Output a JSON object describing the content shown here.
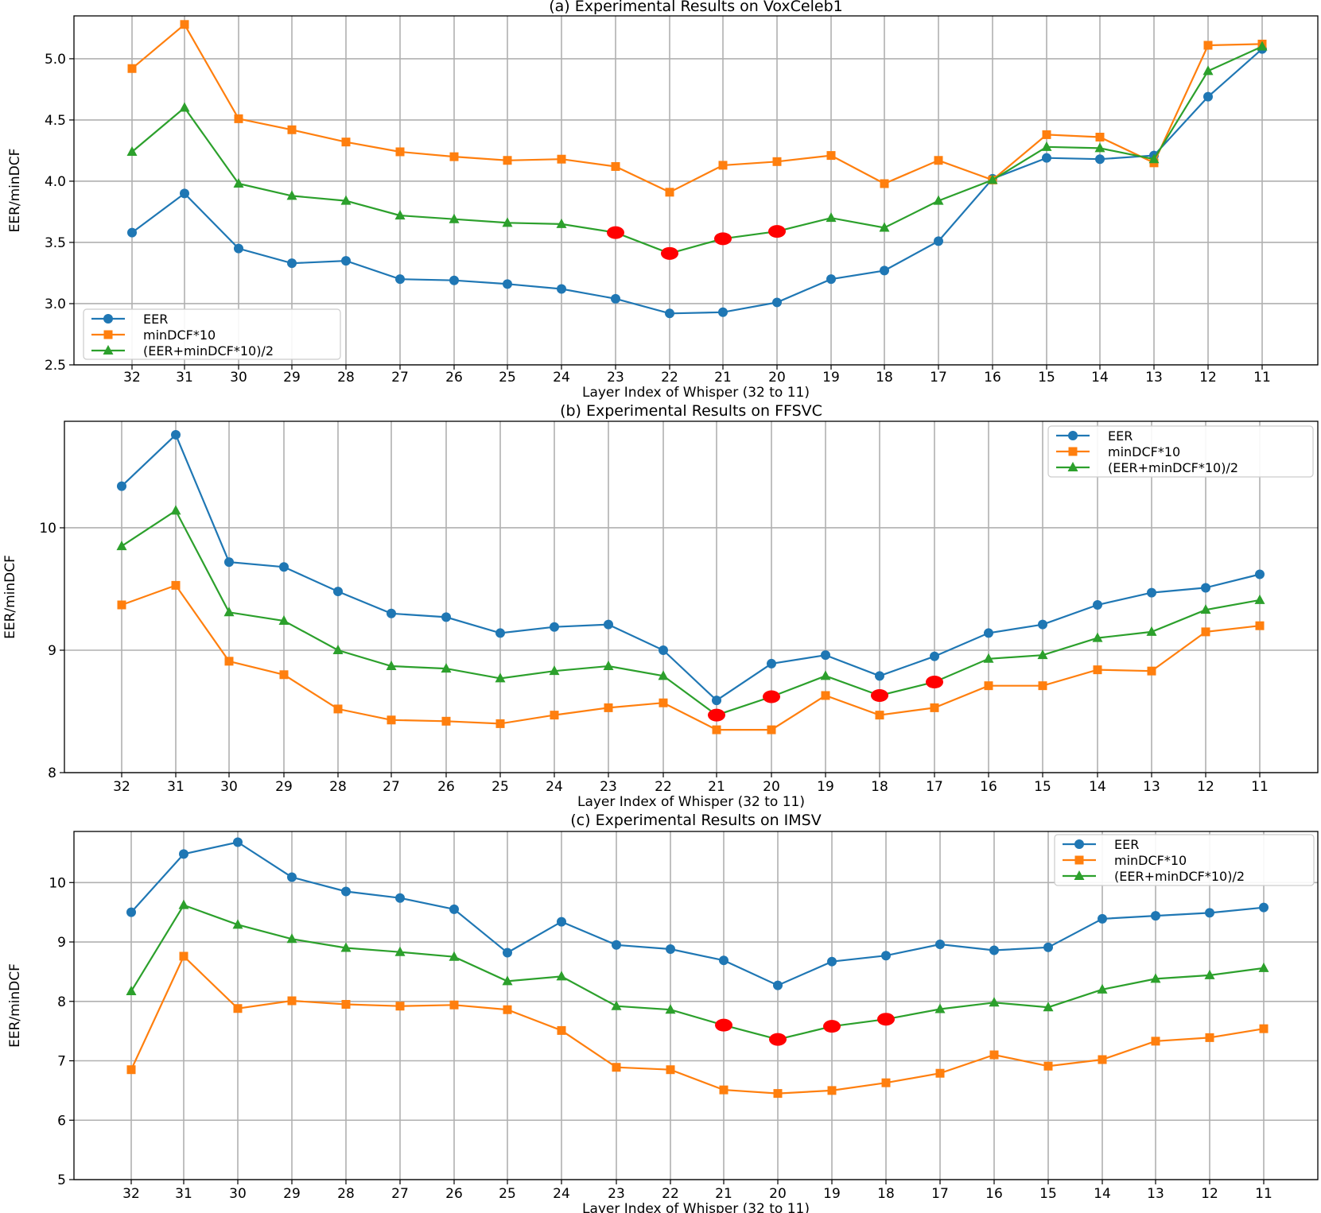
{
  "colors": {
    "eer": "#1f77b4",
    "mindcf": "#ff7f0e",
    "avg": "#2ca02c",
    "highlight": "#ff0000",
    "grid": "#b0b0b0"
  },
  "chart_data": [
    {
      "type": "line",
      "title": "(a) Experimental Results on VoxCeleb1",
      "xlabel": "Layer Index of Whisper (32 to 11)",
      "ylabel": "EER/minDCF",
      "categories": [
        "32",
        "31",
        "30",
        "29",
        "28",
        "27",
        "26",
        "25",
        "24",
        "23",
        "22",
        "21",
        "20",
        "19",
        "18",
        "17",
        "16",
        "15",
        "14",
        "13",
        "12",
        "11"
      ],
      "ylim": [
        2.5,
        5.35
      ],
      "yticks": [
        "2.5",
        "3.0",
        "3.5",
        "4.0",
        "4.5",
        "5.0"
      ],
      "legend_position": "lower-left",
      "series": [
        {
          "name": "EER",
          "marker": "circle",
          "values": [
            3.58,
            3.9,
            3.45,
            3.33,
            3.35,
            3.2,
            3.19,
            3.16,
            3.12,
            3.04,
            2.92,
            2.93,
            3.01,
            3.2,
            3.27,
            3.51,
            4.02,
            4.19,
            4.18,
            4.21,
            4.69,
            5.08
          ]
        },
        {
          "name": "minDCF*10",
          "marker": "square",
          "values": [
            4.92,
            5.28,
            4.51,
            4.42,
            4.32,
            4.24,
            4.2,
            4.17,
            4.18,
            4.12,
            3.91,
            4.13,
            4.16,
            4.21,
            3.98,
            4.17,
            4.01,
            4.38,
            4.36,
            4.15,
            5.11,
            5.12
          ]
        },
        {
          "name": "(EER+minDCF*10)/2",
          "marker": "triangle",
          "values": [
            4.24,
            4.6,
            3.98,
            3.88,
            3.84,
            3.72,
            3.69,
            3.66,
            3.65,
            3.58,
            3.41,
            3.53,
            3.59,
            3.7,
            3.62,
            3.84,
            4.01,
            4.28,
            4.27,
            4.18,
            4.9,
            5.1
          ]
        }
      ],
      "highlights": [
        {
          "layer": "23",
          "value": 3.58
        },
        {
          "layer": "22",
          "value": 3.41
        },
        {
          "layer": "21",
          "value": 3.53
        },
        {
          "layer": "20",
          "value": 3.59
        }
      ]
    },
    {
      "type": "line",
      "title": "(b) Experimental Results on FFSVC",
      "xlabel": "Layer Index of Whisper (32 to 11)",
      "ylabel": "EER/minDCF",
      "categories": [
        "32",
        "31",
        "30",
        "29",
        "28",
        "27",
        "26",
        "25",
        "24",
        "23",
        "22",
        "21",
        "20",
        "19",
        "18",
        "17",
        "16",
        "15",
        "14",
        "13",
        "12",
        "11"
      ],
      "ylim": [
        8,
        10.87
      ],
      "yticks": [
        "8",
        "9",
        "10"
      ],
      "legend_position": "upper-right",
      "series": [
        {
          "name": "EER",
          "marker": "circle",
          "values": [
            10.34,
            10.76,
            9.72,
            9.68,
            9.48,
            9.3,
            9.27,
            9.14,
            9.19,
            9.21,
            9.0,
            8.59,
            8.89,
            8.96,
            8.79,
            8.95,
            9.14,
            9.21,
            9.37,
            9.47,
            9.51,
            9.62
          ]
        },
        {
          "name": "minDCF*10",
          "marker": "square",
          "values": [
            9.37,
            9.53,
            8.91,
            8.8,
            8.52,
            8.43,
            8.42,
            8.4,
            8.47,
            8.53,
            8.57,
            8.35,
            8.35,
            8.63,
            8.47,
            8.53,
            8.71,
            8.71,
            8.84,
            8.83,
            9.15,
            9.2
          ]
        },
        {
          "name": "(EER+minDCF*10)/2",
          "marker": "triangle",
          "values": [
            9.85,
            10.14,
            9.31,
            9.24,
            9.0,
            8.87,
            8.85,
            8.77,
            8.83,
            8.87,
            8.79,
            8.47,
            8.62,
            8.79,
            8.63,
            8.74,
            8.93,
            8.96,
            9.1,
            9.15,
            9.33,
            9.41
          ]
        }
      ],
      "highlights": [
        {
          "layer": "21",
          "value": 8.47
        },
        {
          "layer": "20",
          "value": 8.62
        },
        {
          "layer": "18",
          "value": 8.63
        },
        {
          "layer": "17",
          "value": 8.74
        }
      ]
    },
    {
      "type": "line",
      "title": "(c) Experimental Results on IMSV",
      "xlabel": "Layer Index of Whisper (32 to 11)",
      "ylabel": "EER/minDCF",
      "categories": [
        "32",
        "31",
        "30",
        "29",
        "28",
        "27",
        "26",
        "25",
        "24",
        "23",
        "22",
        "21",
        "20",
        "19",
        "18",
        "17",
        "16",
        "15",
        "14",
        "13",
        "12",
        "11"
      ],
      "ylim": [
        5,
        10.86
      ],
      "yticks": [
        "5",
        "6",
        "7",
        "8",
        "9",
        "10"
      ],
      "legend_position": "upper-right",
      "series": [
        {
          "name": "EER",
          "marker": "circle",
          "values": [
            9.5,
            10.48,
            10.68,
            10.09,
            9.85,
            9.74,
            9.55,
            8.82,
            9.34,
            8.95,
            8.88,
            8.69,
            8.27,
            8.67,
            8.77,
            8.96,
            8.86,
            8.91,
            9.39,
            9.44,
            9.49,
            9.58
          ]
        },
        {
          "name": "minDCF*10",
          "marker": "square",
          "values": [
            6.85,
            8.76,
            7.88,
            8.01,
            7.95,
            7.92,
            7.94,
            7.86,
            7.51,
            6.89,
            6.85,
            6.51,
            6.45,
            6.5,
            6.63,
            6.79,
            7.1,
            6.91,
            7.02,
            7.33,
            7.39,
            7.54
          ]
        },
        {
          "name": "(EER+minDCF*10)/2",
          "marker": "triangle",
          "values": [
            8.17,
            9.62,
            9.29,
            9.05,
            8.9,
            8.83,
            8.75,
            8.34,
            8.42,
            7.92,
            7.86,
            7.6,
            7.36,
            7.58,
            7.7,
            7.87,
            7.98,
            7.9,
            8.2,
            8.38,
            8.44,
            8.56
          ]
        }
      ],
      "highlights": [
        {
          "layer": "21",
          "value": 7.6
        },
        {
          "layer": "20",
          "value": 7.36
        },
        {
          "layer": "19",
          "value": 7.58
        },
        {
          "layer": "18",
          "value": 7.7
        }
      ]
    }
  ]
}
